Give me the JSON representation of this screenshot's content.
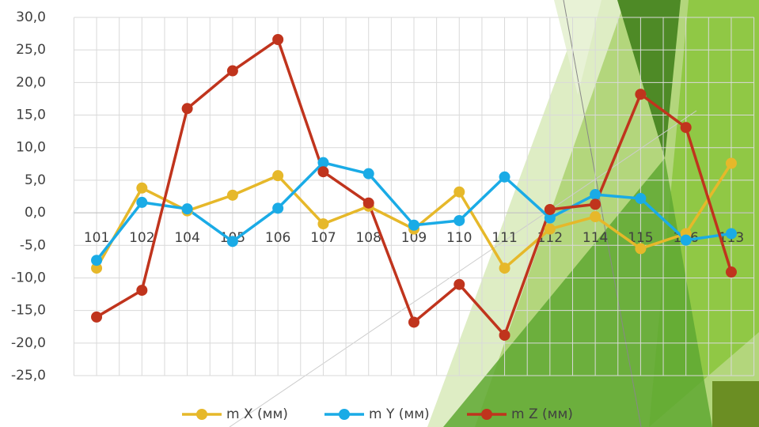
{
  "chart_data": {
    "type": "line",
    "categories": [
      "101",
      "102",
      "104",
      "105",
      "106",
      "107",
      "108",
      "109",
      "110",
      "111",
      "112",
      "114",
      "115",
      "116",
      "113"
    ],
    "series": [
      {
        "name": "m X (мм)",
        "color": "#e6b82a",
        "values": [
          -8.5,
          3.8,
          0.3,
          2.7,
          5.7,
          -1.7,
          1.0,
          -2.5,
          3.2,
          -8.5,
          -2.5,
          -0.6,
          -5.5,
          -3.2,
          7.6
        ]
      },
      {
        "name": "m Y (мм)",
        "color": "#1aabe6",
        "values": [
          -7.3,
          1.6,
          0.6,
          -4.4,
          0.7,
          7.7,
          6.0,
          -1.9,
          -1.2,
          5.5,
          -0.8,
          2.8,
          2.2,
          -4.2,
          -3.2
        ]
      },
      {
        "name": "m Z (мм)",
        "color": "#c0341d",
        "values": [
          -16.0,
          -11.9,
          16.0,
          21.8,
          26.6,
          6.3,
          1.5,
          -16.8,
          -11.0,
          -18.8,
          0.5,
          1.3,
          18.2,
          13.1,
          -9.1
        ]
      }
    ],
    "ylim": [
      -25,
      30
    ],
    "yticks": [
      {
        "value": -25,
        "label": "-25,0"
      },
      {
        "value": -20,
        "label": "-20,0"
      },
      {
        "value": -15,
        "label": "-15,0"
      },
      {
        "value": -10,
        "label": "-10,0"
      },
      {
        "value": -5,
        "label": "-5,0"
      },
      {
        "value": 0,
        "label": "0,0"
      },
      {
        "value": 5,
        "label": "5,0"
      },
      {
        "value": 10,
        "label": "10,0"
      },
      {
        "value": 15,
        "label": "15,0"
      },
      {
        "value": 20,
        "label": "20,0"
      },
      {
        "value": 25,
        "label": "25,0"
      },
      {
        "value": 30,
        "label": "30,0"
      }
    ],
    "grid": true
  }
}
